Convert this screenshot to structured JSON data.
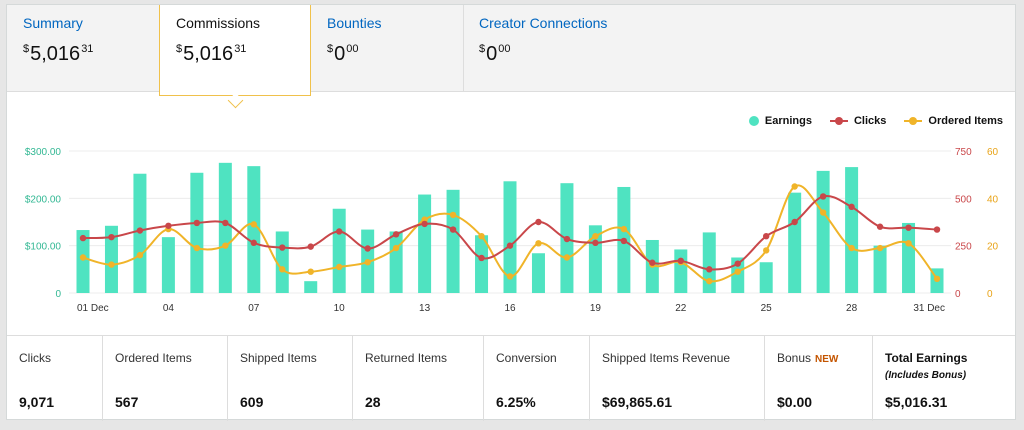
{
  "tabs": [
    {
      "label": "Summary",
      "currency": "$",
      "whole": "5,016",
      "cents": "31"
    },
    {
      "label": "Commissions",
      "currency": "$",
      "whole": "5,016",
      "cents": "31"
    },
    {
      "label": "Bounties",
      "currency": "$",
      "whole": "0",
      "cents": "00"
    },
    {
      "label": "Creator Connections",
      "currency": "$",
      "whole": "0",
      "cents": "00"
    }
  ],
  "legend": [
    {
      "label": "Earnings",
      "color": "#4fe3c1"
    },
    {
      "label": "Clicks",
      "color": "#c9474a"
    },
    {
      "label": "Ordered Items",
      "color": "#f0b429"
    }
  ],
  "stats": [
    {
      "label": "Clicks",
      "value": "9,071"
    },
    {
      "label": "Ordered Items",
      "value": "567"
    },
    {
      "label": "Shipped Items",
      "value": "609"
    },
    {
      "label": "Returned Items",
      "value": "28"
    },
    {
      "label": "Conversion",
      "value": "6.25%"
    },
    {
      "label": "Shipped Items Revenue",
      "value": "$69,865.61"
    },
    {
      "label": "Bonus",
      "badge": "NEW",
      "value": "$0.00"
    },
    {
      "label": "Total Earnings",
      "sub": "(Includes Bonus)",
      "value": "$5,016.31"
    }
  ],
  "chart_data": {
    "type": "bar",
    "x_tick_labels": [
      "01 Dec",
      "04",
      "07",
      "10",
      "13",
      "16",
      "19",
      "22",
      "25",
      "28",
      "31 Dec"
    ],
    "x_tick_days": [
      1,
      4,
      7,
      10,
      13,
      16,
      19,
      22,
      25,
      28,
      31
    ],
    "y_left": {
      "ticks": [
        "0",
        "$100.00",
        "$200.00",
        "$300.00"
      ],
      "range": [
        0,
        300
      ],
      "color": "#33b894"
    },
    "y_right_clicks": {
      "ticks": [
        "0",
        "250",
        "500",
        "750"
      ],
      "range": [
        0,
        750
      ],
      "color": "#c9474a"
    },
    "y_right_items": {
      "ticks": [
        "0",
        "20",
        "40",
        "60"
      ],
      "range": [
        0,
        60
      ],
      "color": "#e8a317"
    },
    "series": [
      {
        "name": "Earnings",
        "axis": "left",
        "color": "#4fe3c1",
        "values": [
          133,
          142,
          252,
          118,
          254,
          275,
          268,
          130,
          25,
          178,
          134,
          130,
          208,
          218,
          122,
          236,
          84,
          232,
          143,
          224,
          112,
          92,
          128,
          75,
          65,
          212,
          258,
          266,
          100,
          148,
          52
        ]
      },
      {
        "name": "Clicks",
        "axis": "right_clicks",
        "color": "#c9474a",
        "values": [
          290,
          295,
          330,
          355,
          370,
          370,
          265,
          240,
          245,
          325,
          235,
          310,
          365,
          335,
          185,
          250,
          375,
          285,
          265,
          275,
          160,
          170,
          125,
          155,
          300,
          375,
          510,
          455,
          350,
          345,
          335
        ]
      },
      {
        "name": "Ordered Items",
        "axis": "right_items",
        "color": "#f0b429",
        "values": [
          15,
          12,
          16,
          27,
          19,
          20,
          29,
          10,
          9,
          11,
          13,
          19,
          31,
          33,
          24,
          7,
          21,
          15,
          24,
          27,
          12,
          13,
          5,
          9,
          18,
          45,
          34,
          19,
          19,
          21,
          6
        ]
      }
    ]
  }
}
